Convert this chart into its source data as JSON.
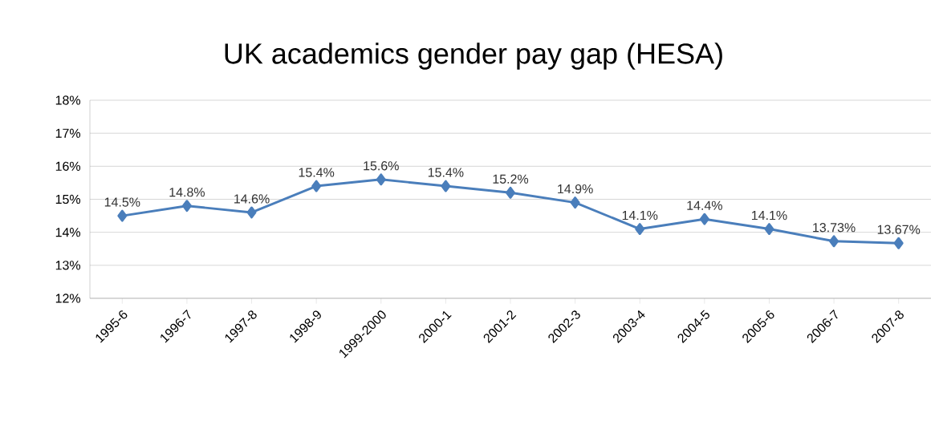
{
  "chart_data": {
    "type": "line",
    "title": "UK academics gender pay gap (HESA)",
    "categories": [
      "1995-6",
      "1996-7",
      "1997-8",
      "1998-9",
      "1999-2000",
      "2000-1",
      "2001-2",
      "2002-3",
      "2003-4",
      "2004-5",
      "2005-6",
      "2006-7",
      "2007-8"
    ],
    "values": [
      14.5,
      14.8,
      14.6,
      15.4,
      15.6,
      15.4,
      15.2,
      14.9,
      14.1,
      14.4,
      14.1,
      13.73,
      13.67
    ],
    "value_labels": [
      "14.5%",
      "14.8%",
      "14.6%",
      "15.4%",
      "15.6%",
      "15.4%",
      "15.2%",
      "14.9%",
      "14.1%",
      "14.4%",
      "14.1%",
      "13.73%",
      "13.67%"
    ],
    "color": "#4a7ebb",
    "marker": "diamond",
    "ylim": [
      12,
      18
    ],
    "yticks": [
      {
        "value": 12,
        "label": "12%"
      },
      {
        "value": 13,
        "label": "13%"
      },
      {
        "value": 14,
        "label": "14%"
      },
      {
        "value": 15,
        "label": "15%"
      },
      {
        "value": 16,
        "label": "16%"
      },
      {
        "value": 17,
        "label": "17%"
      },
      {
        "value": 18,
        "label": "18%"
      }
    ],
    "grid": "y"
  }
}
